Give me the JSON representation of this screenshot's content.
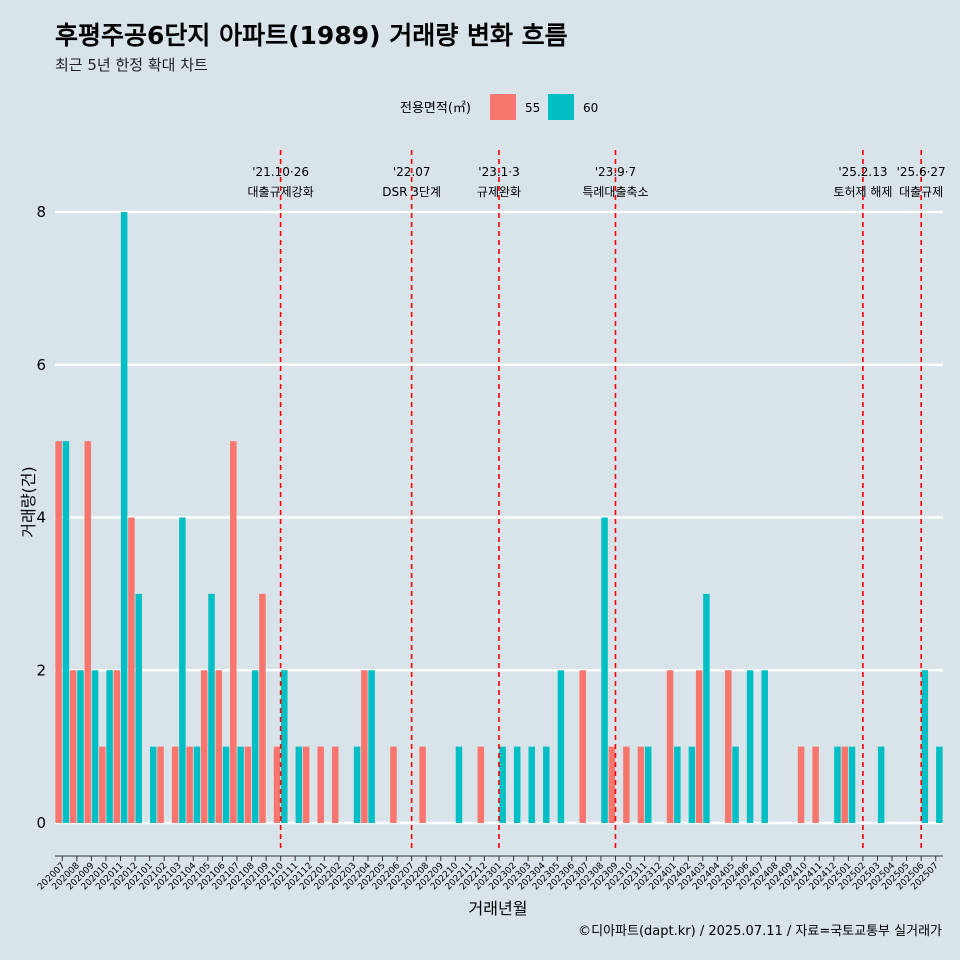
{
  "chart_data": {
    "type": "bar",
    "title": "후평주공6단지 아파트(1989) 거래량 변화 흐름",
    "subtitle": "최근 5년 한정 확대 차트",
    "xlabel": "거래년월",
    "ylabel": "거래량(건)",
    "ylim": [
      0,
      8
    ],
    "yticks": [
      0,
      2,
      4,
      6,
      8
    ],
    "caption": "©디아파트(dapt.kr) / 2025.07.11 / 자료=국토교통부 실거래가",
    "legend": {
      "title": "전용면적(㎡)",
      "position": "top",
      "items": [
        {
          "name": "55",
          "color": "#f8766d"
        },
        {
          "name": "60",
          "color": "#00bfc4"
        }
      ]
    },
    "categories": [
      "202007",
      "202008",
      "202009",
      "202010",
      "202011",
      "202012",
      "202101",
      "202102",
      "202103",
      "202104",
      "202105",
      "202106",
      "202107",
      "202108",
      "202109",
      "202110",
      "202111",
      "202112",
      "202201",
      "202202",
      "202203",
      "202204",
      "202205",
      "202206",
      "202207",
      "202208",
      "202209",
      "202210",
      "202211",
      "202212",
      "202301",
      "202302",
      "202303",
      "202304",
      "202305",
      "202306",
      "202307",
      "202308",
      "202309",
      "202310",
      "202311",
      "202312",
      "202401",
      "202402",
      "202403",
      "202404",
      "202405",
      "202406",
      "202407",
      "202408",
      "202409",
      "202410",
      "202411",
      "202412",
      "202501",
      "202502",
      "202503",
      "202504",
      "202505",
      "202506",
      "202507"
    ],
    "series": [
      {
        "name": "55",
        "color": "#f8766d",
        "values": [
          5,
          2,
          5,
          1,
          2,
          4,
          0,
          1,
          1,
          1,
          2,
          2,
          5,
          1,
          3,
          1,
          0,
          1,
          1,
          1,
          0,
          2,
          0,
          1,
          0,
          1,
          0,
          0,
          0,
          1,
          0,
          0,
          0,
          0,
          0,
          0,
          2,
          0,
          1,
          1,
          1,
          0,
          2,
          0,
          2,
          0,
          2,
          0,
          0,
          0,
          0,
          1,
          1,
          0,
          1,
          0,
          0,
          0,
          0,
          0,
          0
        ]
      },
      {
        "name": "60",
        "color": "#00bfc4",
        "values": [
          5,
          2,
          2,
          2,
          8,
          3,
          1,
          0,
          4,
          1,
          3,
          1,
          1,
          2,
          0,
          2,
          1,
          0,
          0,
          0,
          1,
          2,
          0,
          0,
          0,
          0,
          0,
          1,
          0,
          0,
          1,
          1,
          1,
          1,
          2,
          0,
          0,
          4,
          0,
          0,
          1,
          0,
          1,
          1,
          3,
          0,
          1,
          2,
          2,
          0,
          0,
          0,
          0,
          1,
          1,
          0,
          1,
          0,
          0,
          2,
          1
        ]
      }
    ],
    "annotations": [
      {
        "at": "202110",
        "date": "'21.10·26",
        "label": "대출규제강화"
      },
      {
        "at": "202207",
        "date": "'22.07",
        "label": "DSR 3단계"
      },
      {
        "at": "202301",
        "date": "'23.1·3",
        "label": "규제완화"
      },
      {
        "at": "202309",
        "date": "'23.9·7",
        "label": "특례대출축소"
      },
      {
        "at": "202502",
        "date": "'25.2.13",
        "label": "토허제 해제"
      },
      {
        "at": "202506",
        "date": "'25.6·27",
        "label": "대출규제"
      }
    ]
  }
}
